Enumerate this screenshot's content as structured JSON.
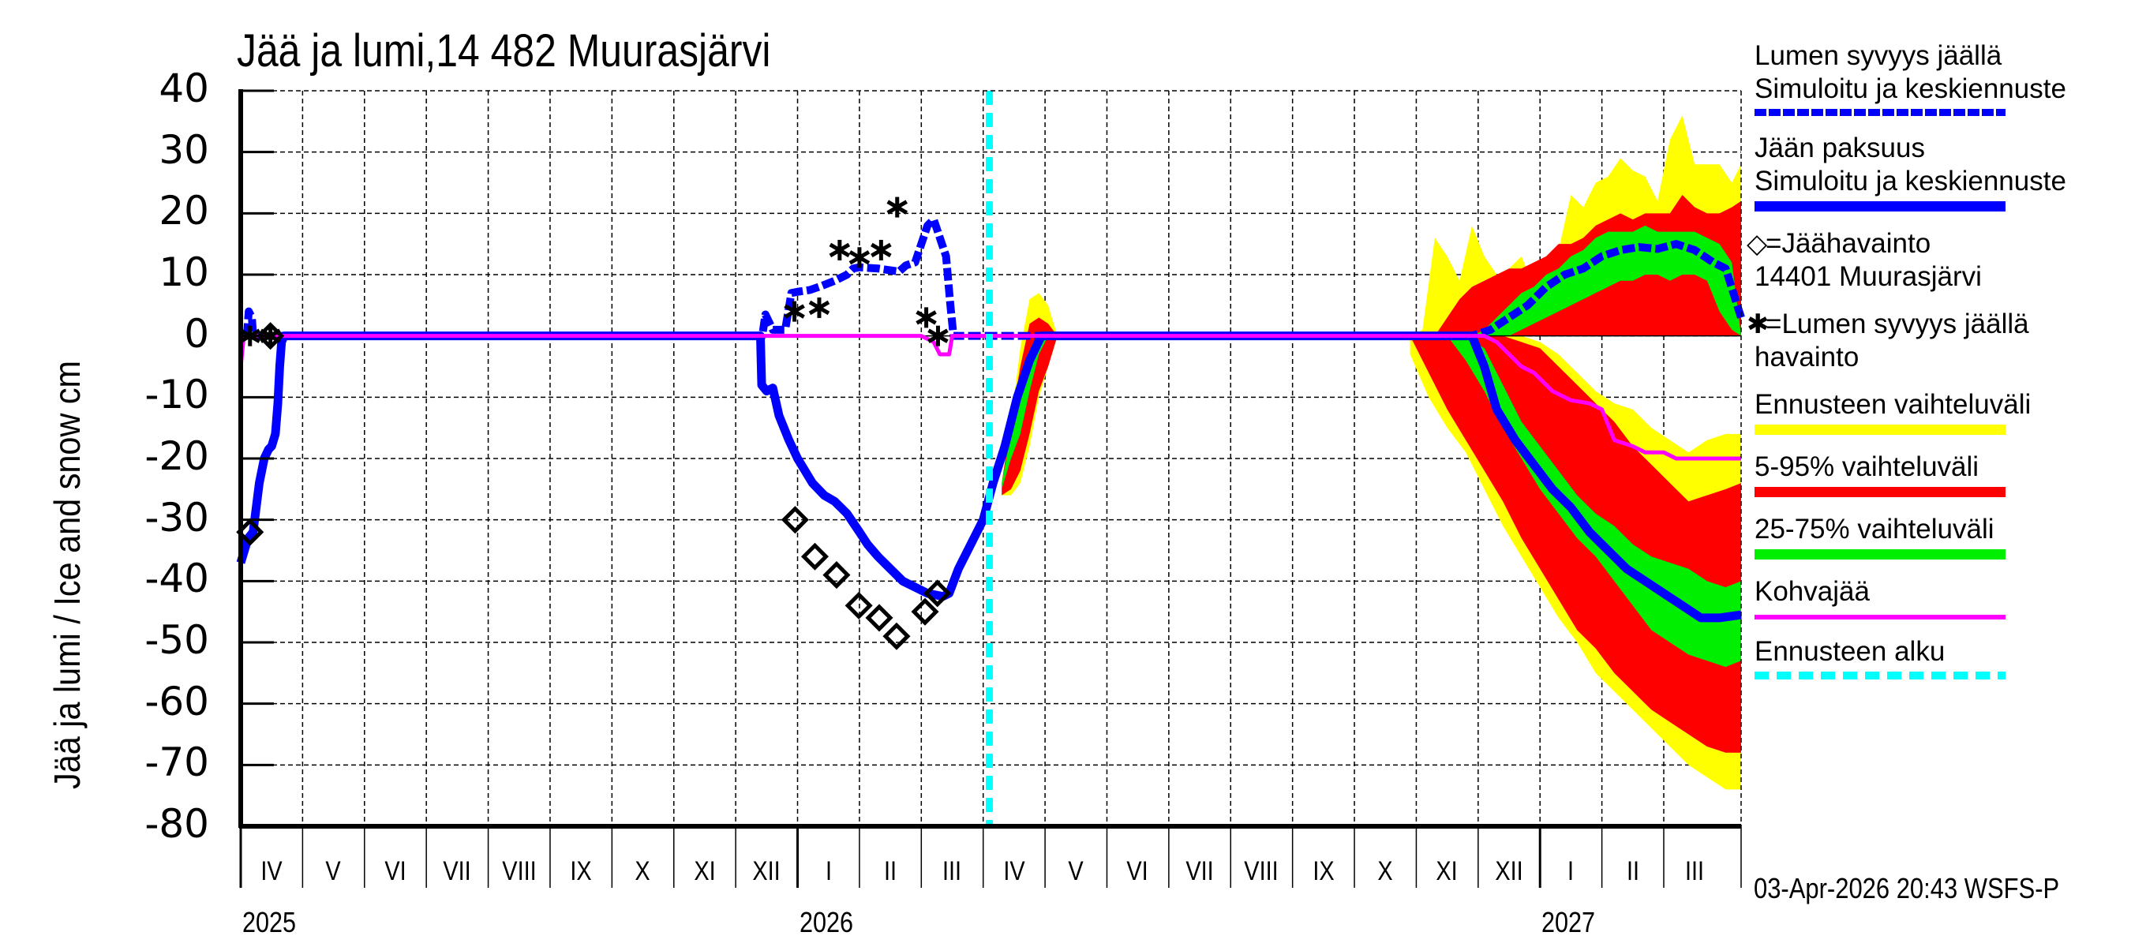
{
  "title": "Jää ja lumi,14 482 Muurasjärvi",
  "y_axis_label": "Jää ja lumi / Ice and snow    cm",
  "timestamp": "03-Apr-2026 20:43 WSFS-P",
  "legend": {
    "snow_title": "Lumen syvyys jäällä",
    "snow_sub": "Simuloitu ja keskiennuste",
    "ice_title": "Jään paksuus",
    "ice_sub": "Simuloitu ja keskiennuste",
    "ice_obs_marker": "◇",
    "ice_obs_label": "=Jäähavainto",
    "ice_obs_station": "14401 Muurasjärvi",
    "snow_obs_marker": "✱",
    "snow_obs_label": "=Lumen syvyys jäällä",
    "snow_obs_sub": "havainto",
    "range_full": "Ennusteen vaihteluväli",
    "range_5_95": "5-95% vaihteluväli",
    "range_25_75": "25-75% vaihteluväli",
    "slush_ice": "Kohvajää",
    "forecast_start": "Ennusteen alku"
  },
  "colors": {
    "series_blue": "#0000ff",
    "range_full": "#ffff00",
    "range_5_95": "#ff0000",
    "range_25_75": "#00ee00",
    "slush_ice": "#ff00ff",
    "forecast_start": "#00ffff"
  },
  "chart_data": {
    "type": "line",
    "title": "Jää ja lumi,14 482 Muurasjärvi",
    "xlabel": "",
    "ylabel": "Jää ja lumi / Ice and snow cm",
    "ylim": [
      -80,
      40
    ],
    "yticks": [
      40,
      30,
      20,
      10,
      0,
      -10,
      -20,
      -30,
      -40,
      -50,
      -60,
      -70,
      -80
    ],
    "x_unit": "months since 2025-04-01",
    "xlim": [
      0,
      24.25
    ],
    "x_month_ticks": [
      "IV",
      "V",
      "VI",
      "VII",
      "VIII",
      "IX",
      "X",
      "XI",
      "XII",
      "I",
      "II",
      "III",
      "IV",
      "V",
      "VI",
      "VII",
      "VIII",
      "IX",
      "X",
      "XI",
      "XII",
      "I",
      "II",
      "III"
    ],
    "x_year_labels": [
      {
        "label": "2025",
        "at": 0
      },
      {
        "label": "2026",
        "at": 9
      },
      {
        "label": "2027",
        "at": 21
      }
    ],
    "grid": true,
    "forecast_start": 12.1,
    "series": [
      {
        "name": "Jään paksuus (simuloitu ja keskiennuste)",
        "style": "solid",
        "x": [
          0,
          0.12,
          0.2,
          0.3,
          0.38,
          0.45,
          0.5,
          0.56,
          0.6,
          0.63,
          0.66,
          0.7,
          8.4,
          8.42,
          8.5,
          8.6,
          8.7,
          8.86,
          9.0,
          9.24,
          9.43,
          9.6,
          9.8,
          10.0,
          10.13,
          10.3,
          10.5,
          10.7,
          10.9,
          11.1,
          11.35,
          11.45,
          11.6,
          11.8,
          12.0,
          12.16,
          12.35,
          12.55,
          12.75,
          12.94,
          19.6,
          19.9,
          20.1,
          20.3,
          20.6,
          20.9,
          21.2,
          21.5,
          21.8,
          22.1,
          22.4,
          22.7,
          23.0,
          23.3,
          23.6,
          23.9,
          24.25
        ],
        "y": [
          -37,
          -33,
          -32,
          -24,
          -20,
          -18.5,
          -18,
          -16,
          -11,
          -5,
          -1,
          0,
          0,
          -8,
          -9,
          -8.5,
          -13,
          -17,
          -20,
          -24,
          -26,
          -27,
          -29,
          -32,
          -34,
          -36,
          -38,
          -40,
          -41,
          -42,
          -42.5,
          -42,
          -38,
          -34,
          -30,
          -24,
          -18,
          -10,
          -4,
          0,
          0,
          0,
          -5,
          -12,
          -17,
          -21,
          -25,
          -28,
          -32,
          -35,
          -38,
          -40,
          -42,
          -44,
          -46,
          -46,
          -45.5
        ]
      },
      {
        "name": "Lumen syvyys jäällä (simuloitu ja keskiennuste)",
        "style": "dashed",
        "x": [
          0.1,
          0.13,
          0.18,
          0.2,
          8.43,
          8.48,
          8.6,
          8.8,
          8.9,
          9.0,
          9.2,
          9.4,
          9.6,
          9.8,
          9.9,
          10.0,
          10.3,
          10.64,
          10.75,
          10.9,
          11.0,
          11.1,
          11.2,
          11.3,
          11.4,
          11.47,
          11.52,
          19.6,
          19.9,
          20.2,
          20.5,
          20.8,
          21.1,
          21.4,
          21.7,
          22.0,
          22.3,
          22.6,
          22.9,
          23.2,
          23.5,
          23.8,
          24.0,
          24.25
        ],
        "y": [
          0,
          4,
          3,
          0,
          0,
          3.5,
          1,
          1,
          7,
          7.2,
          7.5,
          8.2,
          9,
          10,
          11,
          11.2,
          11,
          10.5,
          11.5,
          12,
          15,
          18,
          19,
          16,
          13,
          5,
          0,
          0,
          0,
          1,
          3,
          5,
          8,
          10,
          11,
          13,
          14,
          14.5,
          14.2,
          15,
          14,
          12,
          11,
          3
        ]
      },
      {
        "name": "Kohvajää",
        "style": "solid-thin",
        "x": [
          0,
          0.05,
          11.0,
          11.2,
          11.3,
          11.45,
          11.5,
          20.1,
          20.3,
          20.5,
          20.7,
          20.9,
          21.2,
          21.5,
          21.8,
          22.0,
          22.2,
          22.5,
          22.7,
          23.0,
          23.2,
          24.25
        ],
        "y": [
          -5,
          0,
          0,
          -1,
          -3,
          -3,
          0,
          0,
          -1,
          -3,
          -5,
          -6,
          -9,
          -10.5,
          -11,
          -12,
          -17,
          -18,
          -19,
          -19,
          -20,
          -20
        ]
      },
      {
        "name": "Jäähavainto 14401 Muurasjärvi",
        "style": "marker-diamond",
        "x": [
          0.15,
          0.48,
          8.96,
          9.28,
          9.63,
          9.99,
          10.32,
          10.6,
          11.06,
          11.26
        ],
        "y": [
          -32,
          0,
          -30,
          -36,
          -39,
          -44,
          -46,
          -49,
          -45,
          -42
        ]
      },
      {
        "name": "Lumen syvyys jäällä havainto",
        "style": "marker-asterisk",
        "x": [
          0.15,
          0.48,
          8.95,
          9.35,
          9.68,
          10.0,
          10.35,
          10.61,
          11.08,
          11.27
        ],
        "y": [
          0,
          0,
          4,
          4.6,
          14,
          12.8,
          14,
          21,
          3,
          0
        ]
      }
    ],
    "bands": {
      "spring2026": {
        "x": [
          12.3,
          12.45,
          12.6,
          12.75,
          12.9,
          13.05,
          13.2
        ],
        "full_upper": [
          -24,
          -14,
          -2,
          6,
          7,
          5,
          0
        ],
        "full_lower": [
          -26,
          -26,
          -24,
          -18,
          -10,
          -5,
          0
        ],
        "p5_upper": [
          -24,
          -14,
          -5,
          2,
          3,
          2,
          0
        ],
        "p5_lower": [
          -26,
          -25,
          -22,
          -16,
          -9,
          -5,
          0
        ],
        "p25_upper": [
          -24,
          -16,
          -10,
          -3,
          0,
          0,
          0
        ],
        "p25_lower": [
          -25,
          -20,
          -16,
          -9,
          -3,
          0,
          0
        ]
      },
      "ice_2026_27": {
        "x": [
          18.9,
          19.2,
          19.5,
          19.8,
          20.1,
          20.4,
          20.7,
          21.0,
          21.3,
          21.6,
          21.9,
          22.2,
          22.5,
          22.8,
          23.1,
          23.4,
          23.7,
          24.0,
          24.25
        ],
        "full_upper": [
          0,
          0,
          0,
          0,
          0,
          0,
          0,
          -1,
          -3,
          -6,
          -9,
          -11,
          -12,
          -15,
          -17,
          -19,
          -17,
          -16,
          -16
        ],
        "full_lower": [
          -3,
          -10,
          -15,
          -19,
          -25,
          -31,
          -36,
          -41,
          -46,
          -50,
          -55,
          -58,
          -61,
          -64,
          -67,
          -70,
          -72,
          -74,
          -74
        ],
        "p5_upper": [
          0,
          0,
          0,
          0,
          0,
          0,
          -1,
          -2,
          -5,
          -8,
          -11,
          -14,
          -18,
          -21,
          -24,
          -27,
          -26,
          -25,
          -24
        ],
        "p5_lower": [
          0,
          -6,
          -12,
          -17,
          -22,
          -27,
          -33,
          -38,
          -43,
          -48,
          -51,
          -55,
          -58,
          -61,
          -63,
          -65,
          -67,
          -68,
          -68
        ],
        "p25_upper": [
          0,
          0,
          0,
          0,
          -2,
          -8,
          -14,
          -18,
          -22,
          -26,
          -29,
          -31,
          -34,
          -36,
          -37,
          -38,
          -40,
          -41,
          -40
        ],
        "p25_lower": [
          0,
          0,
          0,
          -4,
          -9,
          -15,
          -20,
          -25,
          -29,
          -33,
          -36,
          -40,
          -44,
          -48,
          -50,
          -52,
          -53,
          -54,
          -53
        ]
      },
      "snow_2026_27": {
        "x": [
          18.9,
          19.1,
          19.3,
          19.5,
          19.7,
          19.9,
          20.1,
          20.3,
          20.5,
          20.7,
          20.9,
          21.1,
          21.3,
          21.5,
          21.7,
          21.9,
          22.1,
          22.3,
          22.5,
          22.7,
          22.9,
          23.1,
          23.3,
          23.5,
          23.7,
          23.9,
          24.1,
          24.25
        ],
        "full_upper": [
          0,
          1,
          16,
          13,
          9,
          18,
          13,
          10,
          11,
          13,
          8,
          12,
          14,
          23,
          21,
          25,
          26,
          29,
          27,
          26,
          22,
          32,
          36,
          28,
          28,
          28,
          25,
          28
        ],
        "full_lower": [
          0,
          0,
          0,
          0,
          0,
          0,
          0,
          0,
          0,
          0,
          0,
          0,
          0,
          0,
          0,
          0,
          0,
          0,
          0,
          0,
          0,
          0,
          0,
          0,
          0,
          0,
          0,
          0
        ],
        "p5_upper": [
          0,
          0,
          0,
          3,
          6,
          8,
          9,
          10,
          11,
          11,
          12,
          13,
          15,
          15,
          16,
          18,
          19,
          20,
          19,
          20,
          20,
          20,
          23,
          21,
          20,
          20,
          21,
          22
        ],
        "p5_lower": [
          0,
          0,
          0,
          0,
          0,
          0,
          0,
          0,
          0,
          0,
          0,
          0,
          0,
          0,
          0,
          0,
          0,
          0,
          0,
          0,
          0,
          0,
          0,
          0,
          0,
          0,
          0,
          0
        ],
        "p25_upper": [
          0,
          0,
          0,
          0,
          0,
          0,
          1,
          3,
          5,
          7,
          8,
          10,
          11,
          13,
          14,
          16,
          17,
          17,
          17,
          18,
          17,
          17,
          17,
          17,
          16,
          15,
          12,
          0
        ],
        "p25_lower": [
          0,
          0,
          0,
          0,
          0,
          0,
          0,
          0,
          0,
          1,
          2,
          3,
          4,
          5,
          6,
          7,
          8,
          9,
          9,
          10,
          10,
          9,
          10,
          10,
          9,
          4,
          1,
          0
        ]
      }
    }
  }
}
